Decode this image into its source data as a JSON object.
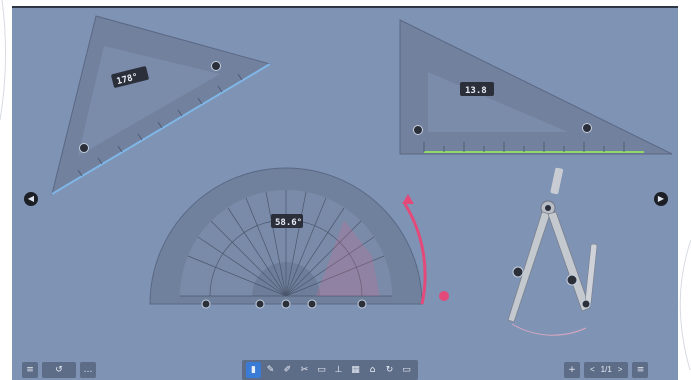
{
  "tools": {
    "triangle_left": {
      "angle_label": "178°"
    },
    "triangle_right": {
      "angle_label": "13.8"
    },
    "protractor": {
      "angle_label": "58.6°"
    },
    "compass": {}
  },
  "navigation": {
    "prev_icon": "chevron-left-icon",
    "next_icon": "chevron-right-icon"
  },
  "toolbar": {
    "left": [
      {
        "name": "menu-button",
        "icon": "≡"
      },
      {
        "name": "undo-button",
        "icon": "↺"
      },
      {
        "name": "share-button",
        "icon": "<"
      },
      {
        "name": "more-button",
        "icon": "…"
      }
    ],
    "center": [
      {
        "name": "select-tool",
        "icon": "▮",
        "active": true
      },
      {
        "name": "pen-tool",
        "icon": "✎"
      },
      {
        "name": "highlighter-tool",
        "icon": "✐"
      },
      {
        "name": "shape-tool",
        "icon": "✂"
      },
      {
        "name": "eraser-tool",
        "icon": "▭"
      },
      {
        "name": "insert-tool",
        "icon": "⊥"
      },
      {
        "name": "media-tool",
        "icon": "▦"
      },
      {
        "name": "toolbox-tool",
        "icon": "⌂"
      },
      {
        "name": "redo-tool",
        "icon": "↻"
      },
      {
        "name": "window-tool",
        "icon": "▭"
      }
    ],
    "right": {
      "add_icon": "+",
      "prev": "<",
      "page": "1/1",
      "next": ">",
      "settings_icon": "≡"
    }
  },
  "colors": {
    "board": "#7f93b5",
    "ruler_accent_blue": "#7fb6e6",
    "ruler_accent_green": "#8fd86a",
    "protractor_arc": "#e34a7a"
  }
}
